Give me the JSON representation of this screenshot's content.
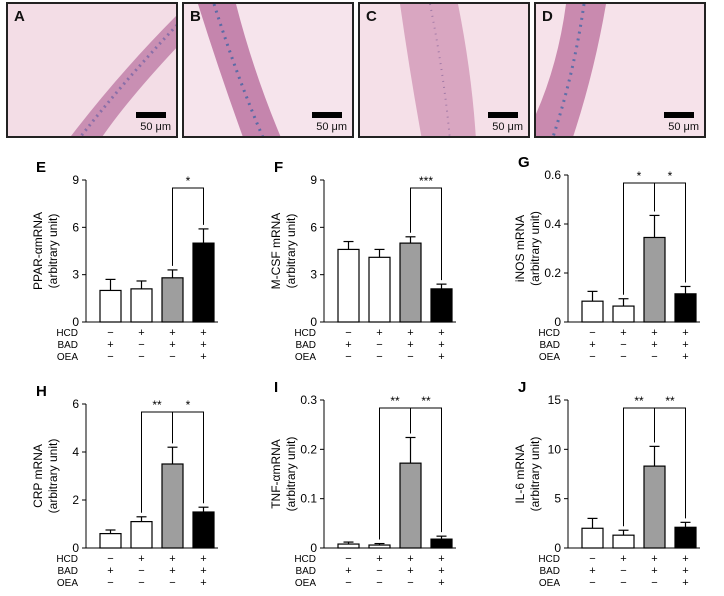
{
  "micrographs": [
    {
      "label": "A",
      "scale": "50 μm"
    },
    {
      "label": "B",
      "scale": "50 μm"
    },
    {
      "label": "C",
      "scale": "50 μm"
    },
    {
      "label": "D",
      "scale": "50 μm"
    }
  ],
  "condition_rows": [
    {
      "name": "HCD",
      "marks": [
        "−",
        "+",
        "+",
        "+"
      ]
    },
    {
      "name": "BAD",
      "marks": [
        "+",
        "−",
        "+",
        "+"
      ]
    },
    {
      "name": "OEA",
      "marks": [
        "−",
        "−",
        "−",
        "+"
      ]
    }
  ],
  "bar_colors": [
    "#ffffff",
    "#ffffff",
    "#9e9e9e",
    "#000000"
  ],
  "chart_data": [
    {
      "panel": "E",
      "type": "bar",
      "ylabel": [
        "PPAR-αmRNA",
        "(arbitrary unit)"
      ],
      "ylim": [
        0,
        9
      ],
      "yticks": [
        "0",
        "3",
        "6",
        "9"
      ],
      "values": [
        2.0,
        2.1,
        2.8,
        5.0
      ],
      "errors": [
        0.7,
        0.5,
        0.5,
        0.9
      ],
      "significance": [
        {
          "from": 2,
          "to": 3,
          "label": "*"
        }
      ]
    },
    {
      "panel": "F",
      "type": "bar",
      "ylabel": [
        "M-CSF mRNA",
        "(arbitrary unit)"
      ],
      "ylim": [
        0,
        9
      ],
      "yticks": [
        "0",
        "3",
        "6",
        "9"
      ],
      "values": [
        4.6,
        4.1,
        5.0,
        2.1
      ],
      "errors": [
        0.5,
        0.5,
        0.4,
        0.3
      ],
      "significance": [
        {
          "from": 2,
          "to": 3,
          "label": "***"
        }
      ]
    },
    {
      "panel": "G",
      "type": "bar",
      "ylabel": [
        "iNOS mRNA",
        "(arbitrary unit)"
      ],
      "ylim": [
        0,
        0.6
      ],
      "yticks": [
        "0",
        "0.2",
        "0.4",
        "0.6"
      ],
      "values": [
        0.085,
        0.065,
        0.345,
        0.115
      ],
      "errors": [
        0.04,
        0.03,
        0.09,
        0.03
      ],
      "significance": [
        {
          "from": 1,
          "to": 2,
          "label": "*"
        },
        {
          "from": 2,
          "to": 3,
          "label": "*"
        }
      ]
    },
    {
      "panel": "H",
      "type": "bar",
      "ylabel": [
        "CRP mRNA",
        "(arbitrary unit)"
      ],
      "ylim": [
        0,
        6
      ],
      "yticks": [
        "0",
        "2",
        "4",
        "6"
      ],
      "values": [
        0.6,
        1.1,
        3.5,
        1.5
      ],
      "errors": [
        0.15,
        0.2,
        0.7,
        0.2
      ],
      "significance": [
        {
          "from": 1,
          "to": 2,
          "label": "**"
        },
        {
          "from": 2,
          "to": 3,
          "label": "*"
        }
      ]
    },
    {
      "panel": "I",
      "type": "bar",
      "ylabel": [
        "TNF-αmRNA",
        "(arbitrary unit)"
      ],
      "ylim": [
        0,
        0.3
      ],
      "yticks": [
        "0",
        "0.1",
        "0.2",
        "0.3"
      ],
      "values": [
        0.008,
        0.006,
        0.172,
        0.018
      ],
      "errors": [
        0.004,
        0.003,
        0.052,
        0.006
      ],
      "significance": [
        {
          "from": 1,
          "to": 2,
          "label": "**"
        },
        {
          "from": 2,
          "to": 3,
          "label": "**"
        }
      ]
    },
    {
      "panel": "J",
      "type": "bar",
      "ylabel": [
        "IL-6 mRNA",
        "(arbitrary unit)"
      ],
      "ylim": [
        0,
        15
      ],
      "yticks": [
        "0",
        "5",
        "10",
        "15"
      ],
      "values": [
        2.0,
        1.3,
        8.3,
        2.1
      ],
      "errors": [
        1.0,
        0.5,
        2.0,
        0.5
      ],
      "significance": [
        {
          "from": 1,
          "to": 2,
          "label": "**"
        },
        {
          "from": 2,
          "to": 3,
          "label": "**"
        }
      ]
    }
  ]
}
